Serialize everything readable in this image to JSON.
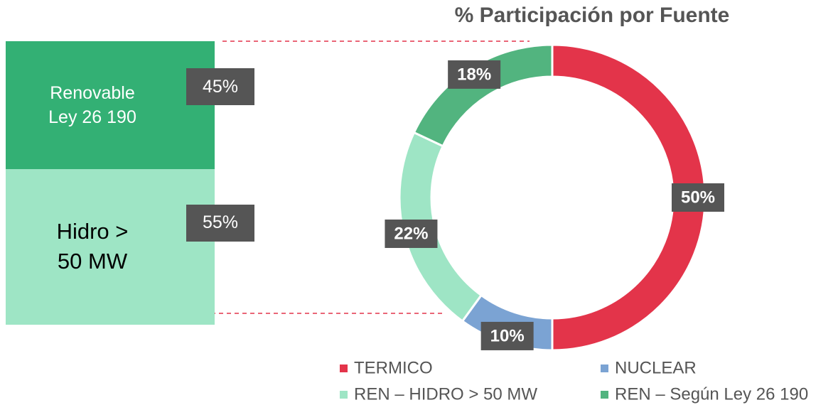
{
  "chart_data": [
    {
      "type": "pie",
      "title": "% Participación por Fuente",
      "categories": [
        "TERMICO",
        "NUCLEAR",
        "REN – HIDRO > 50 MW",
        "REN – Según Ley 26 190"
      ],
      "values": [
        50,
        10,
        22,
        18
      ],
      "value_labels": [
        "50%",
        "10%",
        "22%",
        "18%"
      ],
      "colors": [
        "#e3344a",
        "#7ba3d3",
        "#9ee5c5",
        "#52b47f"
      ],
      "legend": "bottom"
    },
    {
      "type": "stacked_bar",
      "categories": [
        "Renovable Ley 26 190",
        "Hidro > 50 MW"
      ],
      "values": [
        45,
        55
      ],
      "value_labels": [
        "45%",
        "55%"
      ],
      "colors": [
        "#33b074",
        "#9ee5c5"
      ]
    }
  ]
}
